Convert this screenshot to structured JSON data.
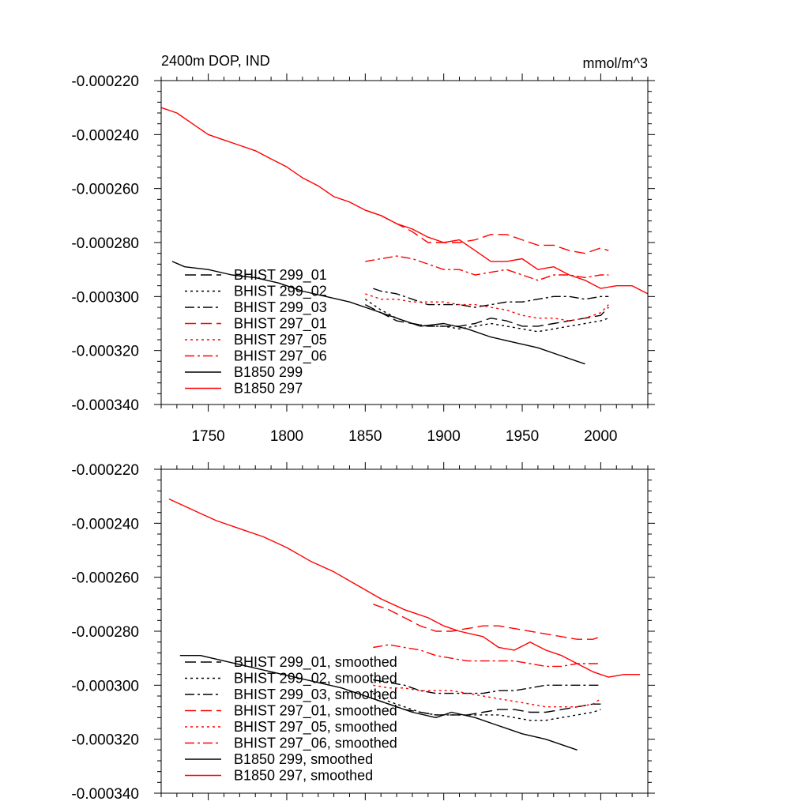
{
  "chart_data": [
    {
      "type": "line",
      "title": "2400m DOP, IND",
      "units": "mmol/m^3",
      "xlabel": "",
      "ylabel": "",
      "xlim": [
        1720,
        2030
      ],
      "ylim": [
        -0.00034,
        -0.00022
      ],
      "xticks": [
        1750,
        1800,
        1850,
        1900,
        1950,
        2000
      ],
      "xtick_labels": [
        "1750",
        "1800",
        "1850",
        "1900",
        "1950",
        "2000"
      ],
      "yticks": [
        -0.00022,
        -0.00024,
        -0.00026,
        -0.00028,
        -0.0003,
        -0.00032,
        -0.00034
      ],
      "ytick_labels": [
        "-0.000220",
        "-0.000240",
        "-0.000260",
        "-0.000280",
        "-0.000300",
        "-0.000320",
        "-0.000340"
      ],
      "legend_position": "bottom-left",
      "series": [
        {
          "name": "BHIST 299_01",
          "color": "#000000",
          "dash": "longdash",
          "x": [
            1850,
            1860,
            1870,
            1880,
            1890,
            1900,
            1910,
            1920,
            1930,
            1940,
            1950,
            1960,
            1970,
            1980,
            1990,
            2000,
            2005
          ],
          "y": [
            -0.000303,
            -0.000306,
            -0.000309,
            -0.00031,
            -0.000311,
            -0.000311,
            -0.000311,
            -0.00031,
            -0.000308,
            -0.000309,
            -0.000311,
            -0.000311,
            -0.00031,
            -0.000309,
            -0.000308,
            -0.000307,
            -0.000304
          ]
        },
        {
          "name": "BHIST 299_02",
          "color": "#000000",
          "dash": "dot",
          "x": [
            1850,
            1860,
            1870,
            1880,
            1890,
            1900,
            1910,
            1920,
            1930,
            1940,
            1950,
            1960,
            1970,
            1980,
            1990,
            2000,
            2005
          ],
          "y": [
            -0.000301,
            -0.000305,
            -0.000308,
            -0.00031,
            -0.000311,
            -0.000311,
            -0.000312,
            -0.000311,
            -0.00031,
            -0.000311,
            -0.000312,
            -0.000313,
            -0.000312,
            -0.000311,
            -0.00031,
            -0.000309,
            -0.000308
          ]
        },
        {
          "name": "BHIST 299_03",
          "color": "#000000",
          "dash": "dashdot",
          "x": [
            1855,
            1860,
            1870,
            1880,
            1890,
            1900,
            1910,
            1920,
            1930,
            1940,
            1950,
            1960,
            1970,
            1980,
            1990,
            2000,
            2005
          ],
          "y": [
            -0.000297,
            -0.000298,
            -0.000299,
            -0.000301,
            -0.000303,
            -0.000303,
            -0.000303,
            -0.000304,
            -0.000303,
            -0.000302,
            -0.000302,
            -0.000301,
            -0.0003,
            -0.0003,
            -0.000301,
            -0.0003,
            -0.0003
          ]
        },
        {
          "name": "BHIST 297_01",
          "color": "#ff0000",
          "dash": "longdash",
          "x": [
            1850,
            1860,
            1870,
            1880,
            1890,
            1900,
            1910,
            1920,
            1930,
            1940,
            1950,
            1960,
            1970,
            1980,
            1990,
            2000,
            2005
          ],
          "y": [
            -0.000268,
            -0.00027,
            -0.000273,
            -0.000276,
            -0.00028,
            -0.00028,
            -0.00028,
            -0.000279,
            -0.000277,
            -0.000277,
            -0.000279,
            -0.000281,
            -0.000281,
            -0.000283,
            -0.000284,
            -0.000282,
            -0.000283
          ]
        },
        {
          "name": "BHIST 297_05",
          "color": "#ff0000",
          "dash": "dot",
          "x": [
            1850,
            1860,
            1870,
            1880,
            1890,
            1900,
            1910,
            1920,
            1930,
            1940,
            1950,
            1960,
            1970,
            1980,
            1990,
            2000,
            2005
          ],
          "y": [
            -0.000299,
            -0.000301,
            -0.000301,
            -0.000302,
            -0.000302,
            -0.000302,
            -0.000303,
            -0.000303,
            -0.000304,
            -0.000305,
            -0.000307,
            -0.000308,
            -0.000308,
            -0.000309,
            -0.000308,
            -0.000306,
            -0.000303
          ]
        },
        {
          "name": "BHIST 297_06",
          "color": "#ff0000",
          "dash": "dashdot",
          "x": [
            1850,
            1860,
            1870,
            1880,
            1890,
            1900,
            1910,
            1920,
            1930,
            1940,
            1950,
            1960,
            1970,
            1980,
            1990,
            2000,
            2005
          ],
          "y": [
            -0.000287,
            -0.000286,
            -0.000285,
            -0.000286,
            -0.000288,
            -0.00029,
            -0.00029,
            -0.000292,
            -0.000291,
            -0.00029,
            -0.000292,
            -0.000294,
            -0.000292,
            -0.000292,
            -0.000293,
            -0.000292,
            -0.000292
          ]
        },
        {
          "name": "B1850 299",
          "color": "#000000",
          "dash": "solid",
          "x": [
            1727,
            1735,
            1750,
            1765,
            1780,
            1795,
            1810,
            1825,
            1840,
            1855,
            1870,
            1885,
            1900,
            1915,
            1930,
            1945,
            1960,
            1975,
            1990
          ],
          "y": [
            -0.000287,
            -0.000289,
            -0.00029,
            -0.000292,
            -0.000293,
            -0.000295,
            -0.000298,
            -0.0003,
            -0.000302,
            -0.000305,
            -0.000308,
            -0.000311,
            -0.00031,
            -0.000312,
            -0.000315,
            -0.000317,
            -0.000319,
            -0.000322,
            -0.000325
          ]
        },
        {
          "name": "B1850 297",
          "color": "#ff0000",
          "dash": "solid",
          "x": [
            1720,
            1730,
            1740,
            1750,
            1760,
            1770,
            1780,
            1790,
            1800,
            1810,
            1820,
            1830,
            1840,
            1850,
            1860,
            1870,
            1880,
            1890,
            1900,
            1910,
            1920,
            1930,
            1940,
            1950,
            1960,
            1970,
            1980,
            1990,
            2000,
            2010,
            2020,
            2030
          ],
          "y": [
            -0.00023,
            -0.000232,
            -0.000236,
            -0.00024,
            -0.000242,
            -0.000244,
            -0.000246,
            -0.000249,
            -0.000252,
            -0.000256,
            -0.000259,
            -0.000263,
            -0.000265,
            -0.000268,
            -0.00027,
            -0.000273,
            -0.000275,
            -0.000278,
            -0.00028,
            -0.000279,
            -0.000283,
            -0.000287,
            -0.000287,
            -0.000286,
            -0.00029,
            -0.000289,
            -0.000292,
            -0.000294,
            -0.000297,
            -0.000296,
            -0.000296,
            -0.000299
          ]
        }
      ]
    },
    {
      "type": "line",
      "title": "",
      "xlabel": "",
      "ylabel": "",
      "xlim": [
        1720,
        2030
      ],
      "ylim": [
        -0.00034,
        -0.00022
      ],
      "xticks": [
        1750,
        1800,
        1850,
        1900,
        1950,
        2000
      ],
      "yticks": [
        -0.00022,
        -0.00024,
        -0.00026,
        -0.00028,
        -0.0003,
        -0.00032,
        -0.00034
      ],
      "ytick_labels": [
        "-0.000220",
        "-0.000240",
        "-0.000260",
        "-0.000280",
        "-0.000300",
        "-0.000320",
        "-0.000340"
      ],
      "legend_position": "bottom-left",
      "series": [
        {
          "name": "BHIST 299_01, smoothed",
          "color": "#000000",
          "dash": "longdash",
          "x": [
            1855,
            1865,
            1875,
            1885,
            1895,
            1905,
            1915,
            1925,
            1935,
            1945,
            1955,
            1965,
            1975,
            1985,
            1995,
            2000
          ],
          "y": [
            -0.000305,
            -0.000307,
            -0.000309,
            -0.00031,
            -0.000311,
            -0.000311,
            -0.000311,
            -0.00031,
            -0.000309,
            -0.000309,
            -0.00031,
            -0.00031,
            -0.000309,
            -0.000308,
            -0.000307,
            -0.000307
          ]
        },
        {
          "name": "BHIST 299_02, smoothed",
          "color": "#000000",
          "dash": "dot",
          "x": [
            1855,
            1865,
            1875,
            1885,
            1895,
            1905,
            1915,
            1925,
            1935,
            1945,
            1955,
            1965,
            1975,
            1985,
            1995,
            2000
          ],
          "y": [
            -0.000303,
            -0.000306,
            -0.000308,
            -0.00031,
            -0.000311,
            -0.000311,
            -0.000311,
            -0.000311,
            -0.000311,
            -0.000312,
            -0.000313,
            -0.000313,
            -0.000312,
            -0.000311,
            -0.00031,
            -0.000309
          ]
        },
        {
          "name": "BHIST 299_03, smoothed",
          "color": "#000000",
          "dash": "dashdot",
          "x": [
            1855,
            1865,
            1875,
            1885,
            1895,
            1905,
            1915,
            1925,
            1935,
            1945,
            1955,
            1965,
            1975,
            1985,
            1995,
            2000
          ],
          "y": [
            -0.000298,
            -0.000299,
            -0.0003,
            -0.000302,
            -0.000303,
            -0.000303,
            -0.000303,
            -0.000303,
            -0.000302,
            -0.000302,
            -0.000301,
            -0.0003,
            -0.0003,
            -0.0003,
            -0.0003,
            -0.0003
          ]
        },
        {
          "name": "BHIST 297_01, smoothed",
          "color": "#ff0000",
          "dash": "longdash",
          "x": [
            1855,
            1865,
            1875,
            1885,
            1895,
            1905,
            1915,
            1925,
            1935,
            1945,
            1955,
            1965,
            1975,
            1985,
            1995,
            2000
          ],
          "y": [
            -0.00027,
            -0.000272,
            -0.000275,
            -0.000278,
            -0.00028,
            -0.00028,
            -0.000279,
            -0.000278,
            -0.000278,
            -0.000279,
            -0.00028,
            -0.000281,
            -0.000282,
            -0.000283,
            -0.000283,
            -0.000282
          ]
        },
        {
          "name": "BHIST 297_05, smoothed",
          "color": "#ff0000",
          "dash": "dot",
          "x": [
            1855,
            1865,
            1875,
            1885,
            1895,
            1905,
            1915,
            1925,
            1935,
            1945,
            1955,
            1965,
            1975,
            1985,
            1995,
            2000
          ],
          "y": [
            -0.0003,
            -0.000301,
            -0.000301,
            -0.000302,
            -0.000302,
            -0.000302,
            -0.000303,
            -0.000304,
            -0.000305,
            -0.000306,
            -0.000307,
            -0.000308,
            -0.000308,
            -0.000308,
            -0.000307,
            -0.000305
          ]
        },
        {
          "name": "BHIST 297_06, smoothed",
          "color": "#ff0000",
          "dash": "dashdot",
          "x": [
            1855,
            1865,
            1875,
            1885,
            1895,
            1905,
            1915,
            1925,
            1935,
            1945,
            1955,
            1965,
            1975,
            1985,
            1995,
            2000
          ],
          "y": [
            -0.000286,
            -0.000285,
            -0.000286,
            -0.000287,
            -0.000289,
            -0.00029,
            -0.000291,
            -0.000291,
            -0.000291,
            -0.000291,
            -0.000292,
            -0.000293,
            -0.000293,
            -0.000292,
            -0.000292,
            -0.000292
          ]
        },
        {
          "name": "B1850 299, smoothed",
          "color": "#000000",
          "dash": "solid",
          "x": [
            1732,
            1745,
            1760,
            1775,
            1790,
            1805,
            1820,
            1835,
            1850,
            1865,
            1880,
            1895,
            1905,
            1920,
            1935,
            1950,
            1965,
            1985
          ],
          "y": [
            -0.000289,
            -0.000289,
            -0.000291,
            -0.000293,
            -0.000295,
            -0.000297,
            -0.000299,
            -0.000301,
            -0.000304,
            -0.000307,
            -0.00031,
            -0.000312,
            -0.00031,
            -0.000312,
            -0.000315,
            -0.000318,
            -0.00032,
            -0.000324
          ]
        },
        {
          "name": "B1850 297, smoothed",
          "color": "#ff0000",
          "dash": "solid",
          "x": [
            1725,
            1740,
            1755,
            1770,
            1785,
            1800,
            1815,
            1830,
            1845,
            1860,
            1875,
            1890,
            1900,
            1910,
            1925,
            1935,
            1945,
            1955,
            1965,
            1975,
            1985,
            1995,
            2005,
            2015,
            2025
          ],
          "y": [
            -0.000231,
            -0.000235,
            -0.000239,
            -0.000242,
            -0.000245,
            -0.000249,
            -0.000254,
            -0.000258,
            -0.000263,
            -0.000268,
            -0.000272,
            -0.000275,
            -0.000278,
            -0.00028,
            -0.000282,
            -0.000286,
            -0.000287,
            -0.000284,
            -0.000287,
            -0.000289,
            -0.000292,
            -0.000295,
            -0.000297,
            -0.000296,
            -0.000296
          ]
        }
      ]
    }
  ]
}
